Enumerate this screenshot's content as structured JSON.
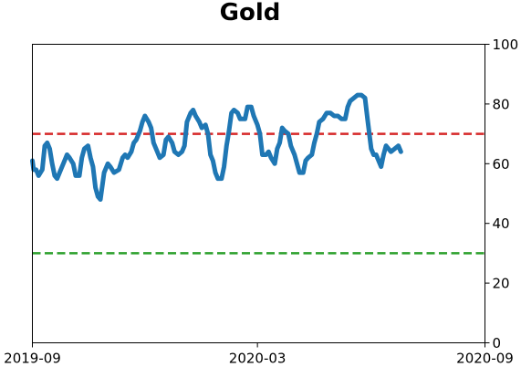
{
  "chart_data": {
    "type": "line",
    "title": "Gold",
    "xlabel": "",
    "ylabel": "",
    "x_ticks": [
      "2019-09",
      "2020-03",
      "2020-09"
    ],
    "y_ticks": [
      "0",
      "20",
      "40",
      "60",
      "80",
      "100"
    ],
    "xlim": [
      "2019-09",
      "2020-09"
    ],
    "ylim": [
      0,
      100
    ],
    "y_axis_side": "right",
    "grid": false,
    "colors": {
      "series": "#1f77b4",
      "upper": "#d62728",
      "lower": "#2ca02c"
    },
    "reference_lines": [
      {
        "y": 70,
        "color": "#d62728",
        "style": "dashed"
      },
      {
        "y": 30,
        "color": "#2ca02c",
        "style": "dashed"
      }
    ],
    "series": [
      {
        "color": "#1f77b4",
        "points": [
          [
            "2019-09-01",
            61
          ],
          [
            "2019-09-02",
            58
          ],
          [
            "2019-09-04",
            58
          ],
          [
            "2019-09-06",
            56
          ],
          [
            "2019-09-09",
            58
          ],
          [
            "2019-09-11",
            66
          ],
          [
            "2019-09-13",
            67
          ],
          [
            "2019-09-15",
            65
          ],
          [
            "2019-09-17",
            60
          ],
          [
            "2019-09-19",
            56
          ],
          [
            "2019-09-21",
            55
          ],
          [
            "2019-09-24",
            58
          ],
          [
            "2019-09-26",
            60
          ],
          [
            "2019-09-29",
            63
          ],
          [
            "2019-10-01",
            62
          ],
          [
            "2019-10-04",
            60
          ],
          [
            "2019-10-06",
            56
          ],
          [
            "2019-10-09",
            56
          ],
          [
            "2019-10-11",
            62
          ],
          [
            "2019-10-13",
            65
          ],
          [
            "2019-10-16",
            66
          ],
          [
            "2019-10-18",
            62
          ],
          [
            "2019-10-20",
            59
          ],
          [
            "2019-10-22",
            52
          ],
          [
            "2019-10-24",
            49
          ],
          [
            "2019-10-26",
            48
          ],
          [
            "2019-10-29",
            57
          ],
          [
            "2019-11-01",
            60
          ],
          [
            "2019-11-03",
            59
          ],
          [
            "2019-11-06",
            57
          ],
          [
            "2019-11-10",
            58
          ],
          [
            "2019-11-13",
            62
          ],
          [
            "2019-11-15",
            63
          ],
          [
            "2019-11-17",
            62
          ],
          [
            "2019-11-20",
            64
          ],
          [
            "2019-11-22",
            67
          ],
          [
            "2019-11-24",
            68
          ],
          [
            "2019-11-27",
            71
          ],
          [
            "2019-11-29",
            74
          ],
          [
            "2019-12-01",
            76
          ],
          [
            "2019-12-04",
            74
          ],
          [
            "2019-12-06",
            72
          ],
          [
            "2019-12-08",
            67
          ],
          [
            "2019-12-11",
            64
          ],
          [
            "2019-12-13",
            62
          ],
          [
            "2019-12-16",
            63
          ],
          [
            "2019-12-18",
            68
          ],
          [
            "2019-12-20",
            69
          ],
          [
            "2019-12-23",
            67
          ],
          [
            "2019-12-25",
            64
          ],
          [
            "2019-12-28",
            63
          ],
          [
            "2019-12-31",
            64
          ],
          [
            "2020-01-02",
            66
          ],
          [
            "2020-01-04",
            74
          ],
          [
            "2020-01-07",
            77
          ],
          [
            "2020-01-09",
            78
          ],
          [
            "2020-01-11",
            76
          ],
          [
            "2020-01-14",
            74
          ],
          [
            "2020-01-16",
            72
          ],
          [
            "2020-01-19",
            73
          ],
          [
            "2020-01-21",
            70
          ],
          [
            "2020-01-23",
            63
          ],
          [
            "2020-01-25",
            61
          ],
          [
            "2020-01-27",
            57
          ],
          [
            "2020-01-29",
            55
          ],
          [
            "2020-02-01",
            55
          ],
          [
            "2020-02-03",
            59
          ],
          [
            "2020-02-05",
            66
          ],
          [
            "2020-02-07",
            71
          ],
          [
            "2020-02-09",
            77
          ],
          [
            "2020-02-11",
            78
          ],
          [
            "2020-02-14",
            77
          ],
          [
            "2020-02-16",
            75
          ],
          [
            "2020-02-20",
            75
          ],
          [
            "2020-02-22",
            79
          ],
          [
            "2020-02-25",
            79
          ],
          [
            "2020-02-27",
            76
          ],
          [
            "2020-03-01",
            73
          ],
          [
            "2020-03-03",
            70
          ],
          [
            "2020-03-05",
            63
          ],
          [
            "2020-03-08",
            63
          ],
          [
            "2020-03-10",
            64
          ],
          [
            "2020-03-12",
            62
          ],
          [
            "2020-03-15",
            60
          ],
          [
            "2020-03-17",
            65
          ],
          [
            "2020-03-19",
            67
          ],
          [
            "2020-03-21",
            72
          ],
          [
            "2020-03-23",
            71
          ],
          [
            "2020-03-26",
            70
          ],
          [
            "2020-03-28",
            66
          ],
          [
            "2020-03-31",
            63
          ],
          [
            "2020-04-02",
            60
          ],
          [
            "2020-04-04",
            57
          ],
          [
            "2020-04-07",
            57
          ],
          [
            "2020-04-09",
            61
          ],
          [
            "2020-04-11",
            62
          ],
          [
            "2020-04-14",
            63
          ],
          [
            "2020-04-16",
            67
          ],
          [
            "2020-04-18",
            70
          ],
          [
            "2020-04-20",
            74
          ],
          [
            "2020-04-23",
            75
          ],
          [
            "2020-04-26",
            77
          ],
          [
            "2020-04-29",
            77
          ],
          [
            "2020-05-02",
            76
          ],
          [
            "2020-05-05",
            76
          ],
          [
            "2020-05-08",
            75
          ],
          [
            "2020-05-11",
            75
          ],
          [
            "2020-05-13",
            79
          ],
          [
            "2020-05-15",
            81
          ],
          [
            "2020-05-18",
            82
          ],
          [
            "2020-05-21",
            83
          ],
          [
            "2020-05-24",
            83
          ],
          [
            "2020-05-27",
            82
          ],
          [
            "2020-05-29",
            75
          ],
          [
            "2020-06-01",
            65
          ],
          [
            "2020-06-03",
            63
          ],
          [
            "2020-06-05",
            63
          ],
          [
            "2020-06-07",
            61
          ],
          [
            "2020-06-09",
            59
          ],
          [
            "2020-06-11",
            63
          ],
          [
            "2020-06-13",
            66
          ],
          [
            "2020-06-15",
            65
          ],
          [
            "2020-06-17",
            64
          ],
          [
            "2020-06-20",
            65
          ],
          [
            "2020-06-23",
            66
          ],
          [
            "2020-06-25",
            64
          ]
        ]
      }
    ]
  }
}
